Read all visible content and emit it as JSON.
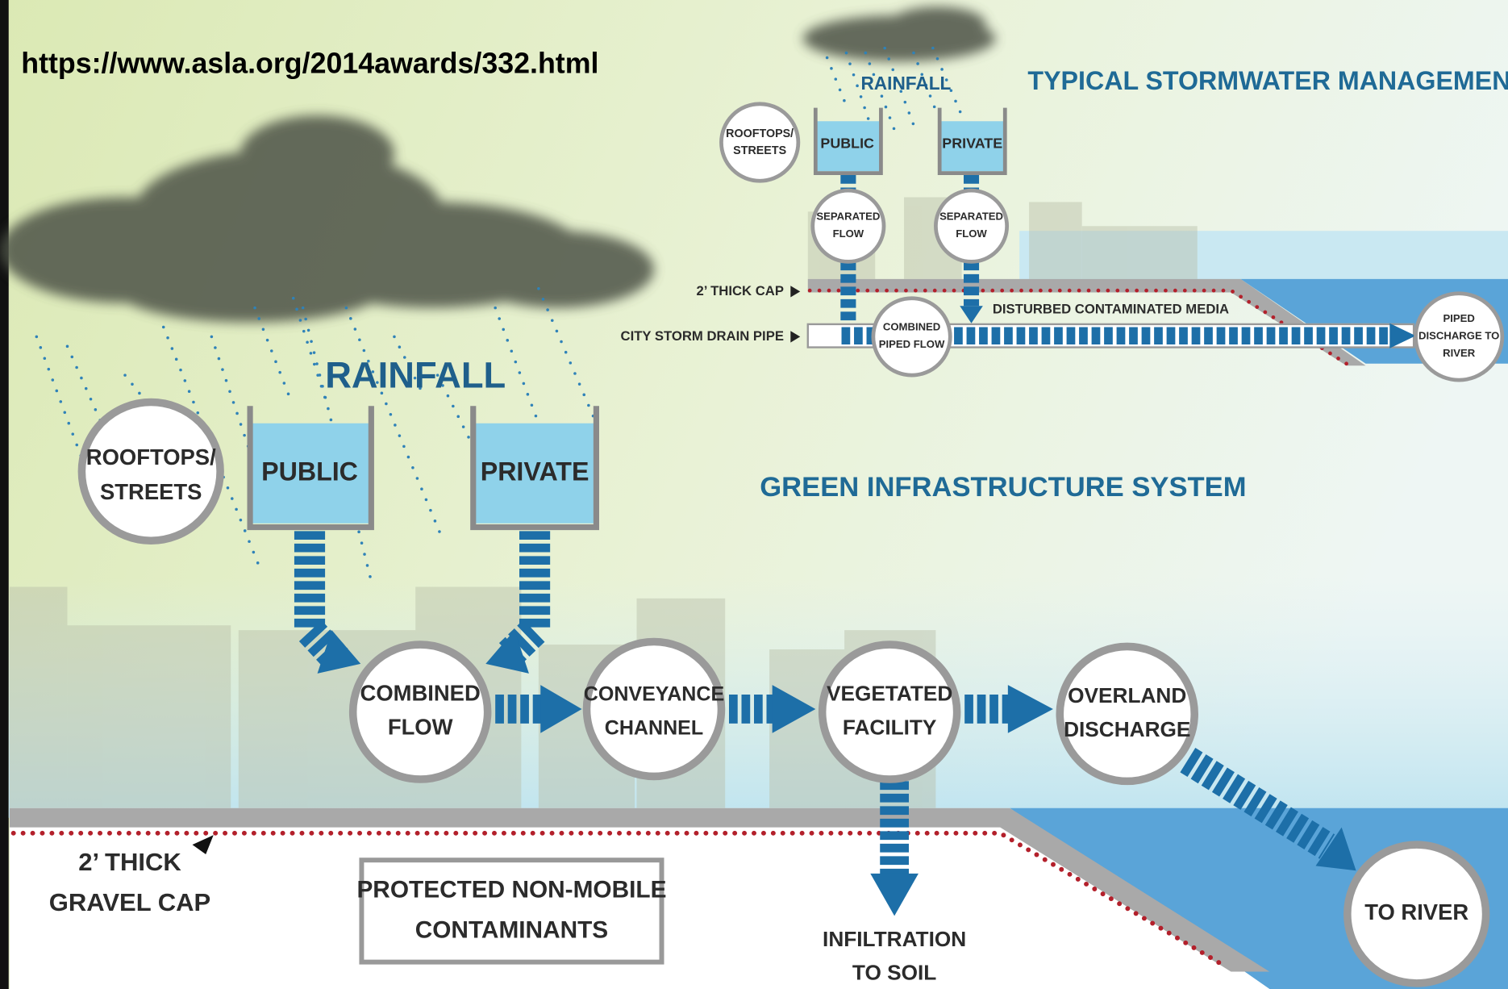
{
  "source_url": "https://www.asla.org/2014awards/332.html",
  "typical": {
    "title": "TYPICAL STORMWATER MANAGEMENT",
    "rainfall": "RAINFALL",
    "rooftops": [
      "ROOFTOPS/",
      "STREETS"
    ],
    "public": "PUBLIC",
    "private": "PRIVATE",
    "separated_public": [
      "SEPARATED",
      "FLOW"
    ],
    "separated_private": [
      "SEPARATED",
      "FLOW"
    ],
    "cap": "2’ THICK CAP",
    "drain_pipe": "CITY STORM DRAIN PIPE",
    "combined": [
      "COMBINED",
      "PIPED FLOW"
    ],
    "media": "DISTURBED CONTAMINATED MEDIA",
    "discharge": [
      "PIPED",
      "DISCHARGE TO",
      "RIVER"
    ]
  },
  "green": {
    "title": "GREEN INFRASTRUCTURE SYSTEM",
    "rainfall": "RAINFALL",
    "rooftops": [
      "ROOFTOPS/",
      "STREETS"
    ],
    "public": "PUBLIC",
    "private": "PRIVATE",
    "combined": [
      "COMBINED",
      "FLOW"
    ],
    "conveyance": [
      "CONVEYANCE",
      "CHANNEL"
    ],
    "vegetated": [
      "VEGETATED",
      "FACILITY"
    ],
    "overland": [
      "OVERLAND",
      "DISCHARGE"
    ],
    "to_river": "TO RIVER",
    "infiltration": [
      "INFILTRATION",
      "TO SOIL"
    ],
    "gravel_cap": [
      "2’ THICK",
      "GRAVEL CAP"
    ],
    "protected": [
      "PROTECTED NON-MOBILE",
      "CONTAMINANTS"
    ]
  }
}
